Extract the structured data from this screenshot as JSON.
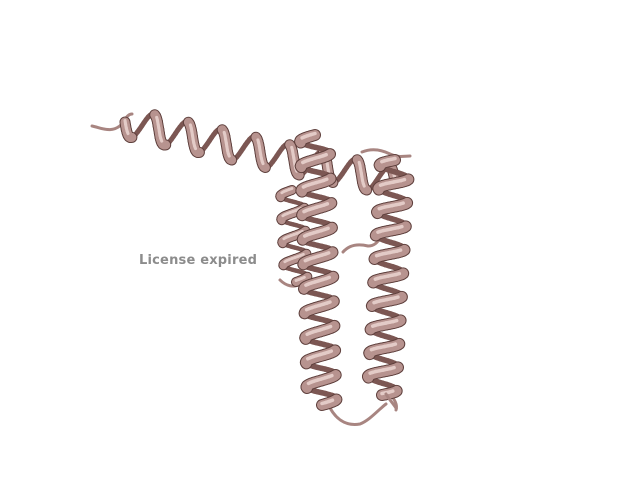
{
  "viewer": {
    "watermark": "License expired",
    "colors": {
      "background": "#ffffff",
      "ribbon_front": "#b7938f",
      "ribbon_highlight": "#e3cbc7",
      "ribbon_back": "#7c5753",
      "ribbon_edge": "#5f403d",
      "loop": "#a88581",
      "watermark": "#8c8c8c"
    }
  }
}
